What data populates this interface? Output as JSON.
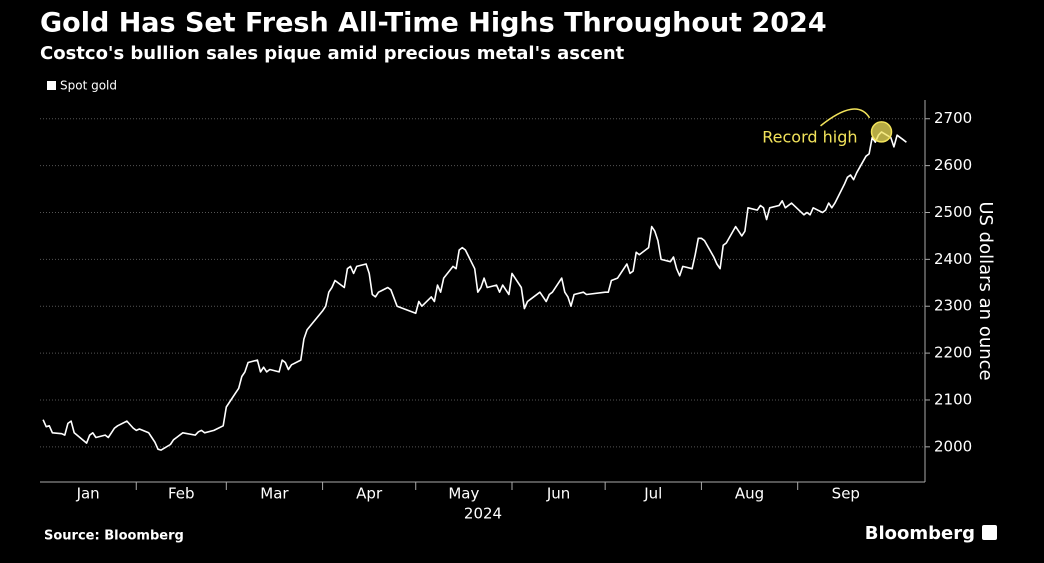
{
  "chart_data": {
    "type": "line",
    "title": "Gold Has Set Fresh All-Time Highs Throughout 2024",
    "subtitle": "Costco's bullion sales pique amid precious metal's ascent",
    "source": "Source: Bloomberg",
    "brand": "Bloomberg",
    "ylabel": "US dollars an ounce",
    "xlabel": "2024",
    "annotation": "Record high",
    "annotation_color": "#f2e35b",
    "legend": "top-left",
    "grid": true,
    "xlim": [
      1,
      286
    ],
    "ylim": [
      1925,
      2740
    ],
    "yticks": [
      2000,
      2100,
      2200,
      2300,
      2400,
      2500,
      2600,
      2700
    ],
    "xticks": [
      {
        "value": 1,
        "label": "Jan"
      },
      {
        "value": 32,
        "label": "Feb"
      },
      {
        "value": 61,
        "label": "Mar"
      },
      {
        "value": 92,
        "label": "Apr"
      },
      {
        "value": 122,
        "label": "May"
      },
      {
        "value": 153,
        "label": "Jun"
      },
      {
        "value": 183,
        "label": "Jul"
      },
      {
        "value": 214,
        "label": "Aug"
      },
      {
        "value": 245,
        "label": "Sep"
      }
    ],
    "x": [
      2,
      3,
      4,
      5,
      8,
      9,
      10,
      11,
      12,
      16,
      17,
      18,
      19,
      22,
      23,
      24,
      25,
      26,
      29,
      31,
      32,
      33,
      36,
      37,
      38,
      39,
      40,
      43,
      44,
      45,
      46,
      47,
      51,
      52,
      53,
      54,
      57,
      60,
      61,
      64,
      65,
      66,
      67,
      68,
      71,
      72,
      73,
      74,
      75,
      78,
      79,
      80,
      81,
      82,
      85,
      86,
      87,
      92,
      93,
      94,
      95,
      96,
      99,
      100,
      101,
      102,
      103,
      106,
      107,
      108,
      109,
      110,
      113,
      114,
      116,
      122,
      123,
      124,
      127,
      128,
      129,
      130,
      131,
      134,
      135,
      136,
      137,
      138,
      141,
      142,
      143,
      144,
      145,
      148,
      149,
      150,
      152,
      153,
      156,
      157,
      158,
      159,
      162,
      163,
      164,
      165,
      166,
      169,
      170,
      171,
      172,
      173,
      176,
      177,
      183,
      184,
      185,
      187,
      190,
      191,
      192,
      193,
      194,
      197,
      198,
      199,
      200,
      201,
      204,
      205,
      206,
      207,
      208,
      211,
      212,
      213,
      214,
      215,
      218,
      219,
      220,
      221,
      222,
      225,
      226,
      227,
      228,
      229,
      232,
      233,
      234,
      235,
      236,
      239,
      240,
      241,
      243,
      247,
      248,
      249,
      250,
      253,
      254,
      255,
      256,
      257,
      260,
      261,
      262,
      263,
      264,
      267,
      268,
      269,
      270,
      271,
      272,
      275,
      276,
      277,
      279,
      280
    ],
    "series": [
      {
        "name": "Spot gold",
        "color": "#ffffff",
        "values": [
          2058,
          2043,
          2045,
          2030,
          2028,
          2025,
          2050,
          2055,
          2030,
          2008,
          2025,
          2030,
          2020,
          2025,
          2020,
          2030,
          2040,
          2045,
          2055,
          2040,
          2035,
          2038,
          2030,
          2020,
          2010,
          1995,
          1993,
          2005,
          2015,
          2020,
          2025,
          2030,
          2025,
          2032,
          2035,
          2030,
          2035,
          2045,
          2085,
          2115,
          2125,
          2150,
          2160,
          2180,
          2185,
          2160,
          2170,
          2160,
          2165,
          2160,
          2185,
          2180,
          2165,
          2175,
          2185,
          2230,
          2250,
          2290,
          2300,
          2330,
          2340,
          2355,
          2340,
          2380,
          2385,
          2370,
          2385,
          2390,
          2370,
          2325,
          2320,
          2330,
          2340,
          2335,
          2300,
          2285,
          2310,
          2300,
          2320,
          2310,
          2345,
          2330,
          2360,
          2385,
          2380,
          2420,
          2425,
          2420,
          2380,
          2330,
          2340,
          2360,
          2340,
          2345,
          2330,
          2345,
          2325,
          2370,
          2340,
          2295,
          2310,
          2315,
          2330,
          2320,
          2310,
          2325,
          2330,
          2360,
          2330,
          2320,
          2300,
          2325,
          2330,
          2325,
          2330,
          2330,
          2355,
          2360,
          2390,
          2370,
          2375,
          2415,
          2410,
          2425,
          2470,
          2460,
          2440,
          2400,
          2395,
          2405,
          2380,
          2365,
          2385,
          2380,
          2410,
          2445,
          2445,
          2440,
          2405,
          2390,
          2380,
          2430,
          2435,
          2470,
          2460,
          2450,
          2460,
          2510,
          2505,
          2515,
          2510,
          2485,
          2510,
          2515,
          2525,
          2510,
          2520,
          2495,
          2500,
          2495,
          2510,
          2500,
          2505,
          2520,
          2510,
          2520,
          2560,
          2575,
          2580,
          2570,
          2585,
          2620,
          2625,
          2660,
          2650,
          2665,
          2672,
          2660,
          2640,
          2665,
          2655,
          2650
        ]
      }
    ]
  }
}
